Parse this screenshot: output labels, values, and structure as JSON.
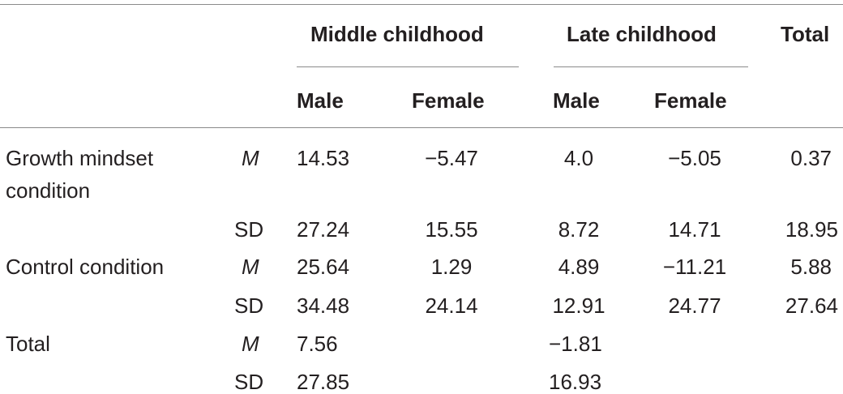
{
  "header": {
    "group1": "Middle childhood",
    "group2": "Late childhood",
    "total": "Total",
    "male1": "Male",
    "female1": "Female",
    "male2": "Male",
    "female2": "Female"
  },
  "rows": [
    {
      "label": "Growth mindset",
      "label2": "condition",
      "stat": "M",
      "values": [
        "14.53",
        "−5.47",
        "4.0",
        "−5.05",
        "0.37"
      ]
    },
    {
      "label": "",
      "stat": "SD",
      "values": [
        "27.24",
        "15.55",
        "8.72",
        "14.71",
        "18.95"
      ]
    },
    {
      "label": "Control condition",
      "stat": "M",
      "values": [
        "25.64",
        "1.29",
        "4.89",
        "−11.21",
        "5.88"
      ]
    },
    {
      "label": "",
      "stat": "SD",
      "values": [
        "34.48",
        "24.14",
        "12.91",
        "24.77",
        "27.64"
      ]
    },
    {
      "label": "Total",
      "stat": "M",
      "values": [
        "7.56",
        "",
        "−1.81",
        "",
        ""
      ]
    },
    {
      "label": "",
      "stat": "SD",
      "values": [
        "27.85",
        "",
        "16.93",
        "",
        ""
      ]
    }
  ]
}
